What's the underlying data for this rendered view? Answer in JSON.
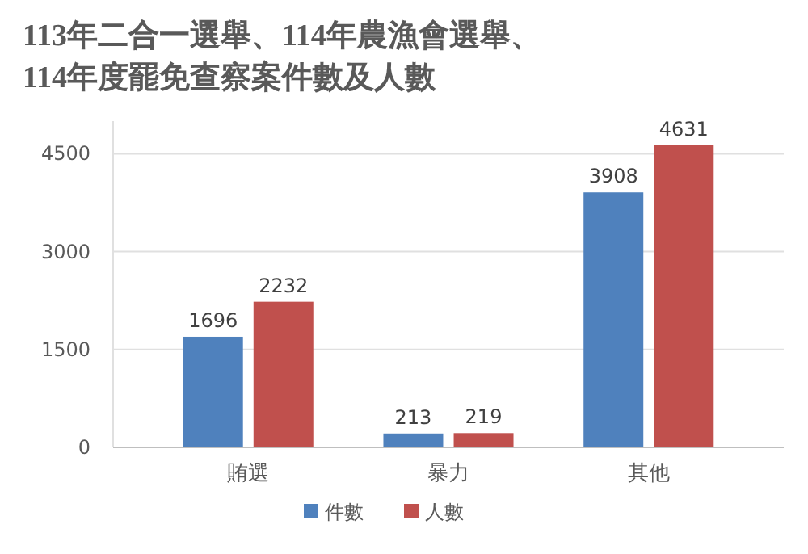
{
  "chart_data": {
    "type": "bar",
    "title": "113年二合一選舉、114年農漁會選舉、\n114年度罷免查察案件數及人數",
    "categories": [
      "賄選",
      "暴力",
      "其他"
    ],
    "series": [
      {
        "name": "件數",
        "color": "#4f81bd",
        "values": [
          1696,
          213,
          3908
        ]
      },
      {
        "name": "人數",
        "color": "#c0504d",
        "values": [
          2232,
          219,
          4631
        ]
      }
    ],
    "ylim": [
      0,
      5000
    ],
    "yticks": [
      0,
      1500,
      3000,
      4500
    ],
    "grid": "y",
    "legend": "bottom",
    "data_labels": true
  }
}
